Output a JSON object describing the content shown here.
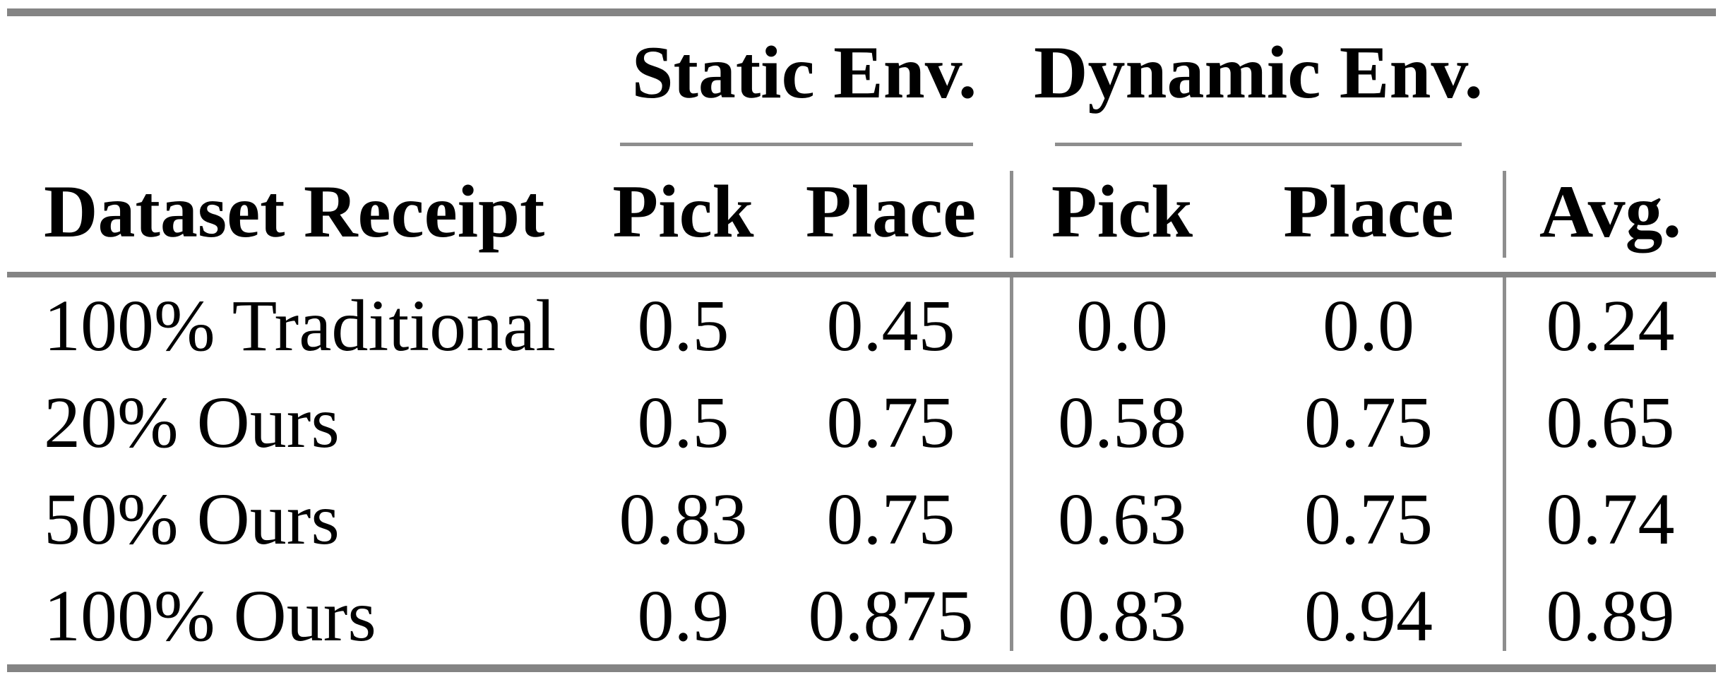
{
  "table": {
    "title_groups": {
      "static": "Static Env.",
      "dynamic": "Dynamic Env."
    },
    "corner_header": "Dataset Receipt",
    "sub_headers": {
      "static_pick": "Pick",
      "static_place": "Place",
      "dynamic_pick": "Pick",
      "dynamic_place": "Place",
      "avg": "Avg."
    },
    "rows": [
      {
        "label": "100% Traditional",
        "static_pick": "0.5",
        "static_place": "0.45",
        "dynamic_pick": "0.0",
        "dynamic_place": "0.0",
        "avg": "0.24"
      },
      {
        "label": "20% Ours",
        "static_pick": "0.5",
        "static_place": "0.75",
        "dynamic_pick": "0.58",
        "dynamic_place": "0.75",
        "avg": "0.65"
      },
      {
        "label": "50% Ours",
        "static_pick": "0.83",
        "static_place": "0.75",
        "dynamic_pick": "0.63",
        "dynamic_place": "0.75",
        "avg": "0.74"
      },
      {
        "label": "100% Ours",
        "static_pick": "0.9",
        "static_place": "0.875",
        "dynamic_pick": "0.83",
        "dynamic_place": "0.94",
        "avg": "0.89"
      }
    ]
  },
  "chart_data": {
    "type": "table",
    "columns": [
      "Dataset Receipt",
      "Static Env. Pick",
      "Static Env. Place",
      "Dynamic Env. Pick",
      "Dynamic Env. Place",
      "Avg."
    ],
    "rows": [
      [
        "100% Traditional",
        0.5,
        0.45,
        0.0,
        0.0,
        0.24
      ],
      [
        "20% Ours",
        0.5,
        0.75,
        0.58,
        0.75,
        0.65
      ],
      [
        "50% Ours",
        0.83,
        0.75,
        0.63,
        0.75,
        0.74
      ],
      [
        "100% Ours",
        0.9,
        0.875,
        0.83,
        0.94,
        0.89
      ]
    ]
  },
  "colors": {
    "background": "#ffffff",
    "text": "#000000",
    "rule_thick": "#848484",
    "rule_thin": "#8e8e8e"
  }
}
